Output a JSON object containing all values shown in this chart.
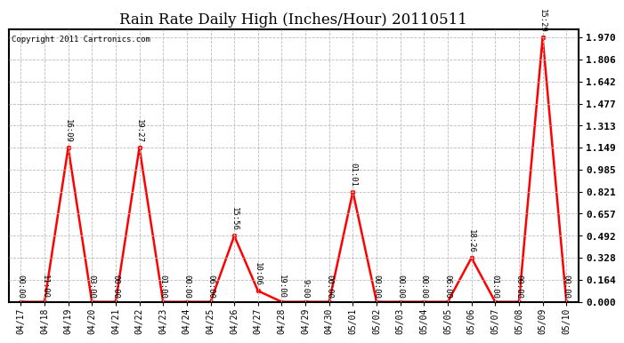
{
  "title": "Rain Rate Daily High (Inches/Hour) 20110511",
  "copyright": "Copyright 2011 Cartronics.com",
  "x_labels": [
    "04/17",
    "04/18",
    "04/19",
    "04/20",
    "04/21",
    "04/22",
    "04/23",
    "04/24",
    "04/25",
    "04/26",
    "04/27",
    "04/28",
    "04/29",
    "04/30",
    "05/01",
    "05/02",
    "05/03",
    "05/04",
    "05/05",
    "05/06",
    "05/07",
    "05/08",
    "05/09",
    "05/10"
  ],
  "y_values": [
    0.0,
    0.0,
    1.149,
    0.0,
    0.0,
    1.149,
    0.0,
    0.0,
    0.0,
    0.492,
    0.082,
    0.0,
    0.0,
    0.0,
    0.821,
    0.0,
    0.0,
    0.0,
    0.0,
    0.328,
    0.0,
    0.0,
    1.97,
    0.0
  ],
  "point_labels": [
    "00:00",
    "11:00",
    "16:09",
    "03:00",
    "00:00",
    "19:27",
    "01:00",
    "00:00",
    "06:00",
    "15:56",
    "10:06",
    "19:00",
    "9:00",
    "00:00",
    "01:01",
    "00:00",
    "00:00",
    "00:00",
    "06:00",
    "18:26",
    "01:00",
    "00:00",
    "15:29",
    "00:00"
  ],
  "line_color": "#ff0000",
  "marker_color": "#ff0000",
  "background_color": "#ffffff",
  "grid_color": "#bbbbbb",
  "title_fontsize": 12,
  "ytick_values": [
    0.0,
    0.164,
    0.328,
    0.492,
    0.657,
    0.821,
    0.985,
    1.149,
    1.313,
    1.477,
    1.642,
    1.806,
    1.97
  ],
  "ymax": 1.97,
  "ymin": 0.0
}
